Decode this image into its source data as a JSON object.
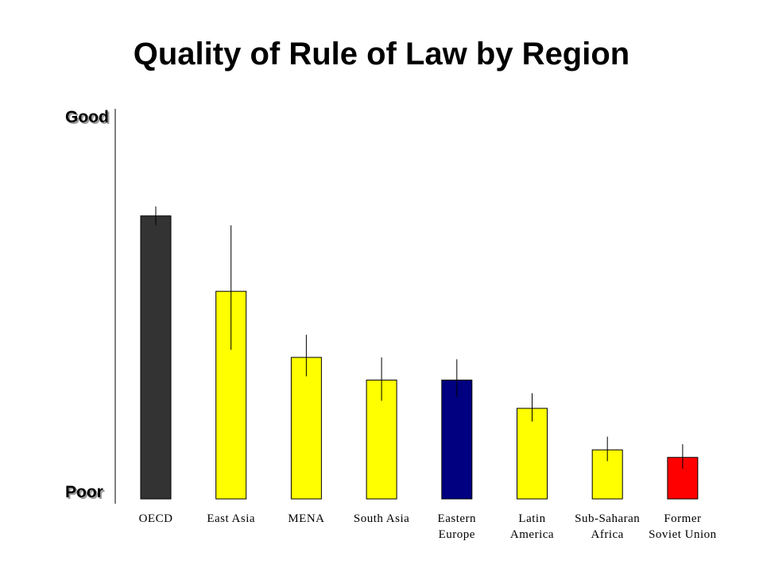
{
  "chart_data": {
    "type": "bar",
    "title": "Quality of Rule of Law by Region",
    "y_axis": {
      "top_label": "Good",
      "bottom_label": "Poor"
    },
    "ylim": [
      0,
      100
    ],
    "categories": [
      [
        "OECD"
      ],
      [
        "East Asia"
      ],
      [
        "MENA"
      ],
      [
        "South Asia"
      ],
      [
        "Eastern",
        "Europe"
      ],
      [
        "Latin",
        "America"
      ],
      [
        "Sub-Saharan",
        "Africa"
      ],
      [
        "Former",
        "Soviet Union"
      ]
    ],
    "values": [
      75,
      55,
      37.5,
      31.5,
      31.5,
      24,
      13,
      11
    ],
    "error_low": [
      72.5,
      39.5,
      32.5,
      26,
      27,
      20.5,
      10,
      8
    ],
    "error_high": [
      77.5,
      72.5,
      43.5,
      37.5,
      37,
      28,
      16.5,
      14.5
    ],
    "colors": [
      "#333333",
      "#ffff00",
      "#ffff00",
      "#ffff00",
      "#000080",
      "#ffff00",
      "#ffff00",
      "#ff0000"
    ]
  }
}
